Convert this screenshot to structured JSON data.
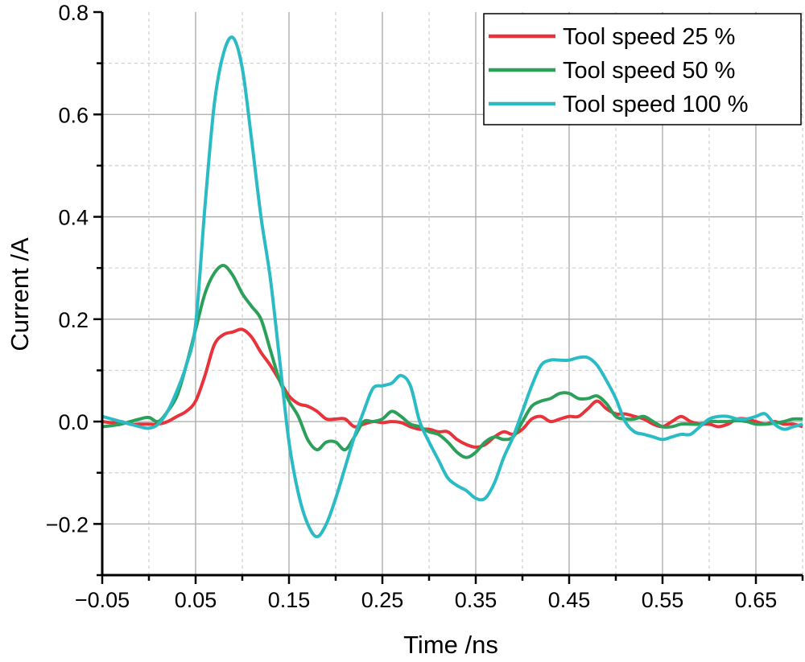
{
  "chart_data": {
    "type": "line",
    "title": "",
    "xlabel": "Time /ns",
    "ylabel": "Current /A",
    "xlim": [
      -0.05,
      0.7
    ],
    "ylim": [
      -0.3,
      0.8
    ],
    "x_ticks": [
      -0.05,
      0.05,
      0.15,
      0.25,
      0.35,
      0.45,
      0.55,
      0.65
    ],
    "x_tick_labels": [
      "−0.05",
      "0.05",
      "0.15",
      "0.25",
      "0.35",
      "0.45",
      "0.55",
      "0.65"
    ],
    "y_ticks": [
      -0.2,
      0.0,
      0.2,
      0.4,
      0.6,
      0.8
    ],
    "y_tick_labels": [
      "−0.2",
      "0.0",
      "0.2",
      "0.4",
      "0.6",
      "0.8"
    ],
    "grid": true,
    "legend_position": "top-right",
    "x_start": -0.05,
    "x_step": 0.01,
    "series": [
      {
        "name": "Tool speed 25 %",
        "color": "#e8333a",
        "values": [
          0.0,
          -0.002,
          0.0,
          -0.005,
          -0.005,
          -0.005,
          -0.005,
          0.0,
          0.01,
          0.02,
          0.04,
          0.09,
          0.15,
          0.17,
          0.175,
          0.18,
          0.165,
          0.135,
          0.11,
          0.08,
          0.05,
          0.035,
          0.03,
          0.02,
          0.005,
          0.005,
          0.005,
          -0.01,
          -0.005,
          0.0,
          -0.002,
          0.0,
          -0.002,
          -0.01,
          -0.015,
          -0.015,
          -0.02,
          -0.02,
          -0.035,
          -0.045,
          -0.05,
          -0.045,
          -0.03,
          -0.02,
          -0.025,
          -0.015,
          0.005,
          0.01,
          0.0,
          0.005,
          0.01,
          0.01,
          0.025,
          0.04,
          0.025,
          0.015,
          0.015,
          0.01,
          0.005,
          -0.005,
          -0.01,
          0.0,
          0.01,
          0.0,
          -0.005,
          -0.005,
          -0.01,
          -0.005,
          0.005,
          0.005,
          0.0,
          -0.005,
          0.0,
          -0.005,
          -0.005,
          -0.01
        ]
      },
      {
        "name": "Tool speed 50 %",
        "color": "#2ca05a",
        "values": [
          -0.01,
          -0.008,
          -0.005,
          0.0,
          0.005,
          0.008,
          0.0,
          0.02,
          0.05,
          0.11,
          0.18,
          0.25,
          0.29,
          0.305,
          0.285,
          0.25,
          0.225,
          0.2,
          0.14,
          0.08,
          0.04,
          0.01,
          -0.035,
          -0.055,
          -0.04,
          -0.04,
          -0.055,
          -0.03,
          0.0,
          0.0,
          0.005,
          0.02,
          0.01,
          -0.005,
          -0.01,
          -0.02,
          -0.025,
          -0.04,
          -0.06,
          -0.07,
          -0.06,
          -0.04,
          -0.03,
          -0.035,
          -0.03,
          0.0,
          0.03,
          0.04,
          0.045,
          0.055,
          0.055,
          0.045,
          0.045,
          0.05,
          0.035,
          0.01,
          0.005,
          0.005,
          0.01,
          0.0,
          -0.01,
          -0.01,
          -0.005,
          -0.005,
          -0.005,
          0.0,
          0.0,
          0.0,
          0.002,
          0.0,
          -0.005,
          -0.005,
          -0.003,
          0.0,
          0.005,
          0.005
        ]
      },
      {
        "name": "Tool speed 100 %",
        "color": "#2bbbc4",
        "values": [
          0.01,
          0.005,
          0.0,
          -0.005,
          -0.01,
          -0.013,
          -0.005,
          0.02,
          0.06,
          0.11,
          0.19,
          0.42,
          0.62,
          0.72,
          0.75,
          0.69,
          0.55,
          0.4,
          0.28,
          0.12,
          -0.04,
          -0.14,
          -0.2,
          -0.225,
          -0.2,
          -0.15,
          -0.09,
          -0.03,
          0.02,
          0.065,
          0.07,
          0.075,
          0.09,
          0.07,
          0.0,
          -0.04,
          -0.075,
          -0.11,
          -0.125,
          -0.135,
          -0.15,
          -0.15,
          -0.12,
          -0.07,
          -0.03,
          0.02,
          0.07,
          0.11,
          0.12,
          0.12,
          0.12,
          0.125,
          0.125,
          0.11,
          0.08,
          0.045,
          0.0,
          -0.02,
          -0.025,
          -0.03,
          -0.035,
          -0.03,
          -0.025,
          -0.025,
          -0.01,
          0.005,
          0.01,
          0.01,
          0.005,
          0.005,
          0.01,
          0.015,
          -0.005,
          -0.015,
          -0.01,
          -0.005
        ]
      }
    ]
  }
}
